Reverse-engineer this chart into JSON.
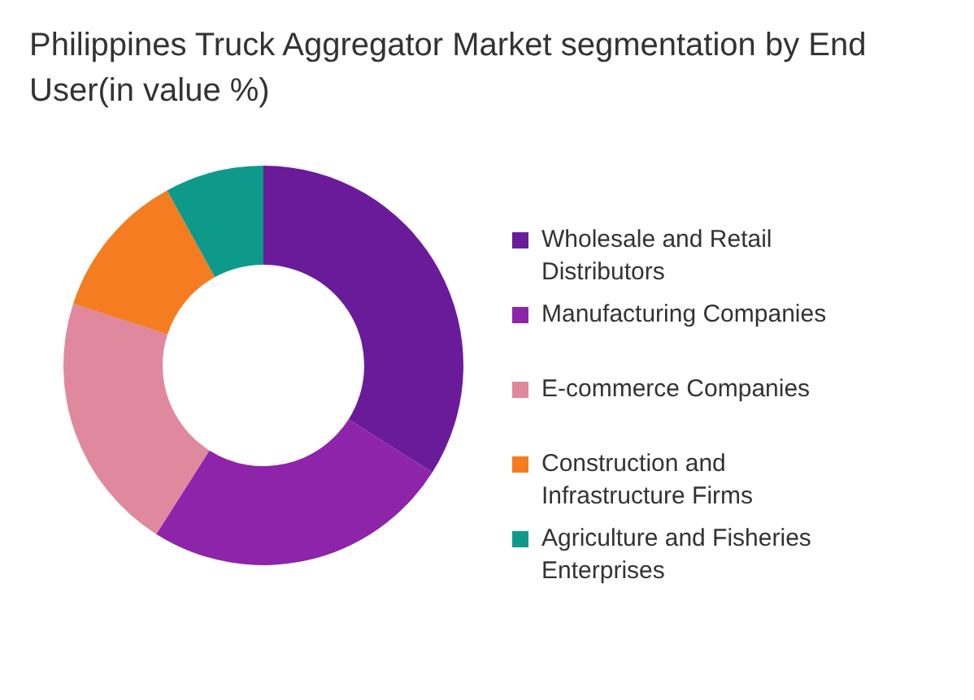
{
  "chart_data": {
    "type": "donut",
    "title": "Philippines Truck Aggregator Market segmentation by End User(in value %)",
    "categories": [
      "Wholesale and Retail Distributors",
      "Manufacturing Companies",
      "E-commerce Companies",
      "Construction and Infrastructure Firms",
      "Agriculture and Fisheries Enterprises"
    ],
    "values": [
      34,
      25,
      21,
      12,
      8
    ],
    "colors": [
      "#6a1b9a",
      "#8e24aa",
      "#e0889e",
      "#f57c20",
      "#0e9a8a"
    ],
    "legend": "right"
  }
}
